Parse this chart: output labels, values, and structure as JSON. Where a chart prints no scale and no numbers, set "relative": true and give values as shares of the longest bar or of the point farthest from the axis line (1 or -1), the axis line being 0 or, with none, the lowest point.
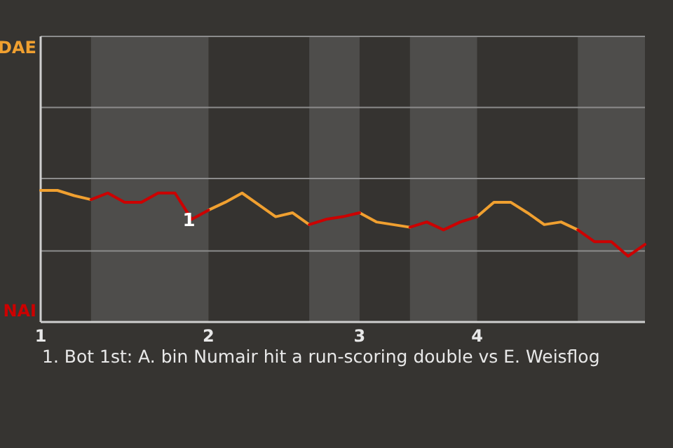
{
  "chart_data": {
    "type": "line",
    "relative": true,
    "categories": [
      "1",
      null,
      null,
      null,
      null,
      null,
      null,
      null,
      null,
      null,
      "2",
      null,
      null,
      null,
      null,
      null,
      null,
      null,
      null,
      "3",
      null,
      null,
      null,
      null,
      null,
      null,
      "4",
      null,
      null,
      null,
      null,
      null,
      null,
      null,
      null,
      null,
      null
    ],
    "series": [
      {
        "name": "DAE",
        "color": "#f0a030",
        "values": [
          1,
          1,
          0.96,
          0.93,
          null,
          null,
          null,
          null,
          null,
          null,
          0.85,
          0.91,
          0.98,
          0.89,
          0.8,
          0.83,
          0.74,
          null,
          null,
          0.83,
          0.76,
          0.74,
          0.72,
          null,
          null,
          null,
          0.8,
          0.91,
          0.91,
          0.83,
          0.74,
          0.76,
          0.7,
          null,
          null,
          null,
          null
        ]
      },
      {
        "name": "NAI",
        "color": "#cc0000",
        "values": [
          null,
          null,
          null,
          0.93,
          0.98,
          0.91,
          0.91,
          0.98,
          0.98,
          0.78,
          0.85,
          null,
          null,
          null,
          null,
          null,
          0.74,
          0.78,
          0.8,
          0.83,
          null,
          null,
          0.72,
          0.76,
          0.7,
          0.76,
          0.8,
          null,
          null,
          null,
          null,
          null,
          0.7,
          0.61,
          0.61,
          0.5,
          0.59
        ]
      }
    ],
    "legend": "left",
    "marker": "none",
    "line_style": "solid",
    "ref_lines": [
      {
        "axis": "y",
        "value": 0.54,
        "color": "#8c8c8c"
      },
      {
        "axis": "y",
        "value": 1.09,
        "color": "#8c8c8c"
      },
      {
        "axis": "y",
        "value": 1.63,
        "color": "#8c8c8c"
      }
    ],
    "annotations": [
      {
        "text": "1",
        "y": 0.78
      },
      "1. Bot 1st: A. bin Numair hit a run-scoring double vs E. Weisflog"
    ]
  }
}
